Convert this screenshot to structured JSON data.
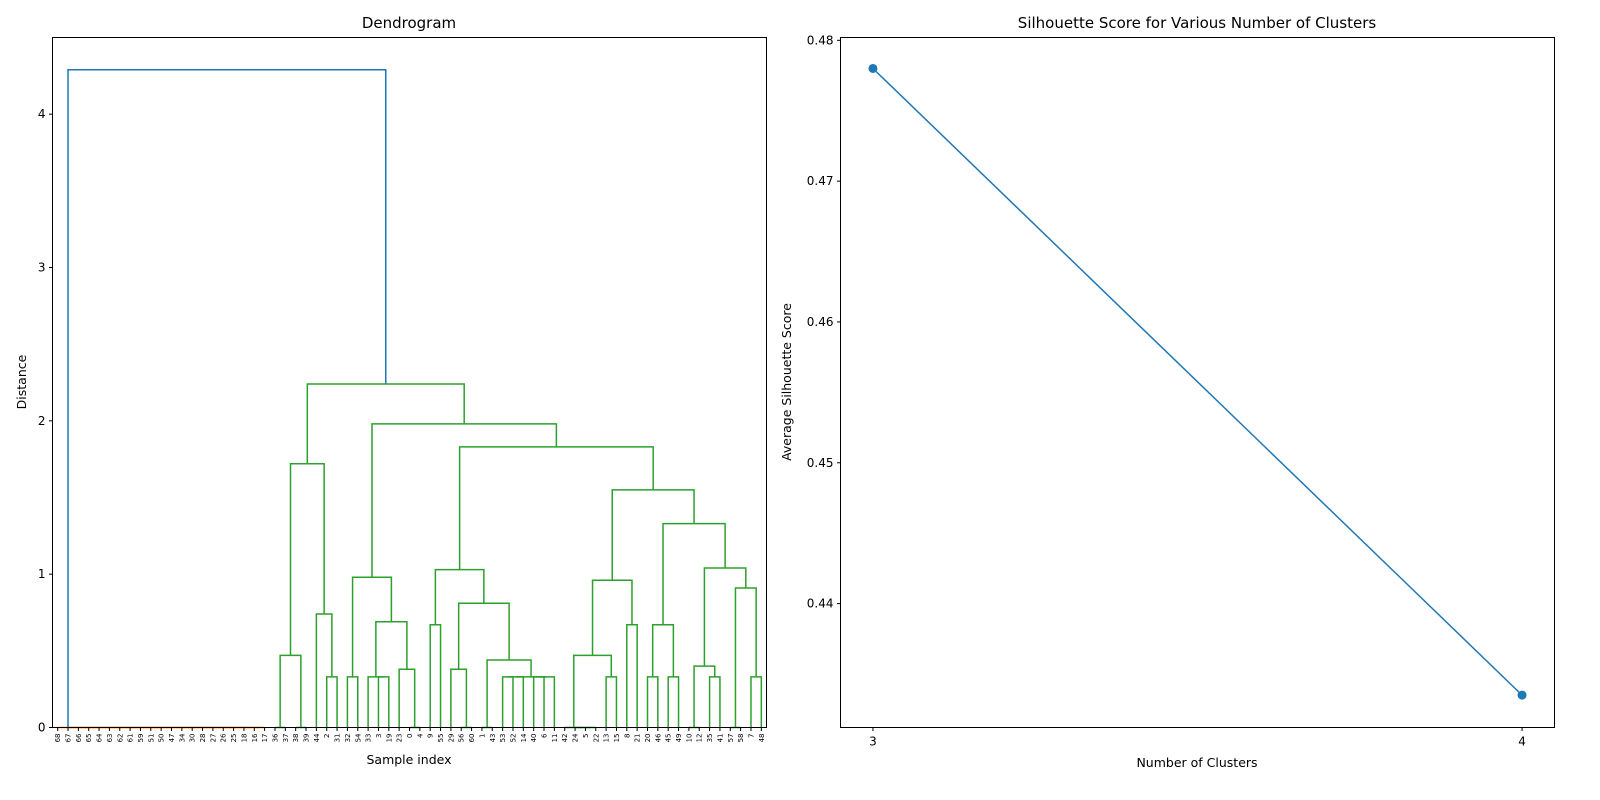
{
  "chart_data": [
    {
      "type": "dendrogram",
      "title": "Dendrogram",
      "xlabel": "Sample index",
      "ylabel": "Distance",
      "ylim": [
        0,
        4.5
      ],
      "yticks": [
        0,
        1,
        2,
        3,
        4
      ],
      "grid": false,
      "colors": {
        "above_threshold": "#1f77b4",
        "clusters": [
          "#ff7f0e",
          "#2ca02c"
        ]
      },
      "tree": [
        4.29,
        [
          0,
          "68",
          [
            0,
            "67",
            [
              0,
              "66",
              [
                0,
                "65",
                [
                  0,
                  "64",
                  [
                    0,
                    "63",
                    [
                      0,
                      "62",
                      [
                        0,
                        "61",
                        [
                          0,
                          "59",
                          [
                            0,
                            "51",
                            [
                              0,
                              "50",
                              [
                                0,
                                "47",
                                [
                                  0,
                                  "34",
                                  [
                                    0,
                                    "30",
                                    [
                                      0,
                                      "28",
                                      [
                                        0,
                                        "27",
                                        [
                                          0,
                                          "26",
                                          [
                                            0,
                                            "25",
                                            [
                                              0,
                                              "18",
                                              [
                                                0,
                                                "16",
                                                "17"
                                              ]
                                            ]
                                          ]
                                        ]
                                      ]
                                    ]
                                  ]
                                ]
                              ]
                            ]
                          ]
                        ]
                      ]
                    ]
                  ]
                ]
              ]
            ]
          ]
        ],
        [
          2.24,
          [
            1.72,
            [
              0.47,
              [
                0,
                "36",
                "37"
              ],
              [
                0,
                "38",
                "39"
              ]
            ],
            [
              0.74,
              "44",
              [
                0.33,
                "2",
                "31"
              ]
            ]
          ],
          [
            1.98,
            [
              0.98,
              [
                0.33,
                "32",
                "54"
              ],
              [
                0.69,
                [
                  0.33,
                  "33",
                  [
                    0.33,
                    "3",
                    "19"
                  ]
                ],
                [
                  0.38,
                  "23",
                  [
                    0,
                    "0",
                    "4"
                  ]
                ]
              ]
            ],
            [
              1.83,
              [
                1.03,
                [
                  0.67,
                  "9",
                  "55"
                ],
                [
                  0.81,
                  [
                    0.38,
                    "29",
                    [
                      0,
                      "56",
                      "60"
                    ]
                  ],
                  [
                    0.44,
                    [
                      0,
                      "1",
                      "43"
                    ],
                    [
                      0.33,
                      [
                        0.33,
                        [
                          0.33,
                          "53",
                          "52"
                        ],
                        "14"
                      ],
                      [
                        0.33,
                        [
                          0.33,
                          "40",
                          "6"
                        ],
                        "11"
                      ]
                    ]
                  ]
                ]
              ],
              [
                1.55,
                [
                  0.96,
                  [
                    0.47,
                    [
                      0,
                      "42",
                      [
                        0,
                        "24",
                        [
                          0,
                          "5",
                          "22"
                        ]
                      ]
                    ],
                    [
                      0.33,
                      "13",
                      "15"
                    ]
                  ],
                  [
                    0.67,
                    "8",
                    "21"
                  ]
                ],
                [
                  1.33,
                  [
                    0.67,
                    [
                      0.33,
                      "20",
                      "46"
                    ],
                    [
                      0.33,
                      "45",
                      "49"
                    ]
                  ],
                  [
                    1.04,
                    [
                      0.4,
                      [
                        0,
                        "10",
                        "12"
                      ],
                      [
                        0.33,
                        "35",
                        "41"
                      ]
                    ],
                    [
                      0.91,
                      [
                        0,
                        "57",
                        "58"
                      ],
                      [
                        0.33,
                        "7",
                        "48"
                      ]
                    ]
                  ]
                ]
              ]
            ]
          ]
        ]
      ]
    },
    {
      "type": "line",
      "title": "Silhouette Score for Various Number of Clusters",
      "xlabel": "Number of Clusters",
      "ylabel": "Average Silhouette Score",
      "x": [
        3,
        4
      ],
      "y": [
        0.478,
        0.4335
      ],
      "xlim": [
        2.95,
        4.05
      ],
      "ylim": [
        0.4312,
        0.4802
      ],
      "xticks": [
        3,
        4
      ],
      "yticks": [
        0.44,
        0.45,
        0.46,
        0.47,
        0.48
      ],
      "ytick_labels": [
        "0.44",
        "0.45",
        "0.46",
        "0.47",
        "0.48"
      ],
      "marker": "circle",
      "color": "#1f77b4",
      "grid": false
    }
  ]
}
